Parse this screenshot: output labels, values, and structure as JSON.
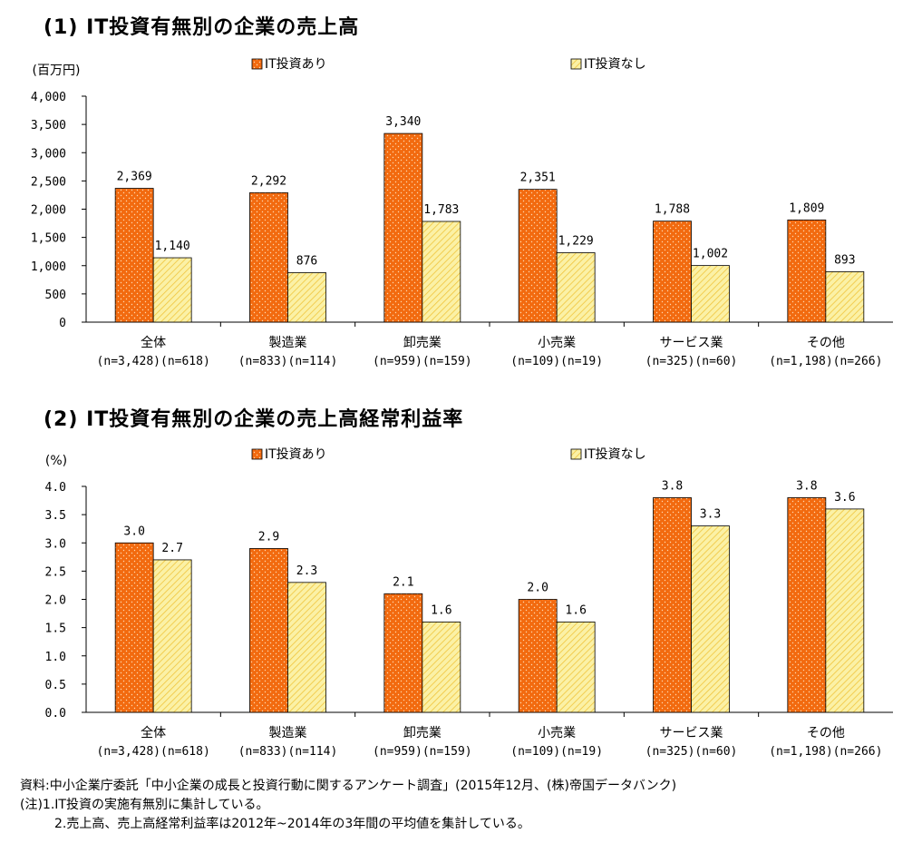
{
  "chart_data": [
    {
      "type": "bar",
      "title": "(1) IT投資有無別の企業の売上高",
      "unit": "(百万円)",
      "categories": [
        "全体",
        "製造業",
        "卸売業",
        "小売業",
        "サービス業",
        "その他"
      ],
      "category_counts": [
        "(n=3,428)(n=618)",
        "(n=833)(n=114)",
        "(n=959)(n=159)",
        "(n=109)(n=19)",
        "(n=325)(n=60)",
        "(n=1,198)(n=266)"
      ],
      "series": [
        {
          "name": "IT投資あり",
          "values": [
            2369,
            2292,
            3340,
            2351,
            1788,
            1809
          ],
          "labels": [
            "2,369",
            "2,292",
            "3,340",
            "2,351",
            "1,788",
            "1,809"
          ]
        },
        {
          "name": "IT投資なし",
          "values": [
            1140,
            876,
            1783,
            1229,
            1002,
            893
          ],
          "labels": [
            "1,140",
            "876",
            "1,783",
            "1,229",
            "1,002",
            "893"
          ]
        }
      ],
      "ylim": [
        0,
        4000
      ],
      "yticks": [
        0,
        500,
        1000,
        1500,
        2000,
        2500,
        3000,
        3500,
        4000
      ],
      "ytick_labels": [
        "0",
        "500",
        "1,000",
        "1,500",
        "2,000",
        "2,500",
        "3,000",
        "3,500",
        "4,000"
      ],
      "legend_position": "top-center",
      "grid": false
    },
    {
      "type": "bar",
      "title": "(2) IT投資有無別の企業の売上高経常利益率",
      "unit": "(%)",
      "categories": [
        "全体",
        "製造業",
        "卸売業",
        "小売業",
        "サービス業",
        "その他"
      ],
      "category_counts": [
        "(n=3,428)(n=618)",
        "(n=833)(n=114)",
        "(n=959)(n=159)",
        "(n=109)(n=19)",
        "(n=325)(n=60)",
        "(n=1,198)(n=266)"
      ],
      "series": [
        {
          "name": "IT投資あり",
          "values": [
            3.0,
            2.9,
            2.1,
            2.0,
            3.8,
            3.8
          ],
          "labels": [
            "3.0",
            "2.9",
            "2.1",
            "2.0",
            "3.8",
            "3.8"
          ]
        },
        {
          "name": "IT投資なし",
          "values": [
            2.7,
            2.3,
            1.6,
            1.6,
            3.3,
            3.6
          ],
          "labels": [
            "2.7",
            "2.3",
            "1.6",
            "1.6",
            "3.3",
            "3.6"
          ]
        }
      ],
      "ylim": [
        0,
        4.0
      ],
      "yticks": [
        0,
        0.5,
        1.0,
        1.5,
        2.0,
        2.5,
        3.0,
        3.5,
        4.0
      ],
      "ytick_labels": [
        "0.0",
        "0.5",
        "1.0",
        "1.5",
        "2.0",
        "2.5",
        "3.0",
        "3.5",
        "4.0"
      ],
      "legend_position": "top-center",
      "grid": false
    }
  ],
  "colors": {
    "series_1": "#f26a0f",
    "series_2": "#fbf1a6",
    "axis": "#000000"
  },
  "notes": {
    "source": "資料:中小企業庁委託「中小企業の成長と投資行動に関するアンケート調査」(2015年12月、(株)帝国データバンク)",
    "note1": "(注)1.IT投資の実施有無別に集計している。",
    "note2": "2.売上高、売上高経常利益率は2012年~2014年の3年間の平均値を集計している。"
  }
}
